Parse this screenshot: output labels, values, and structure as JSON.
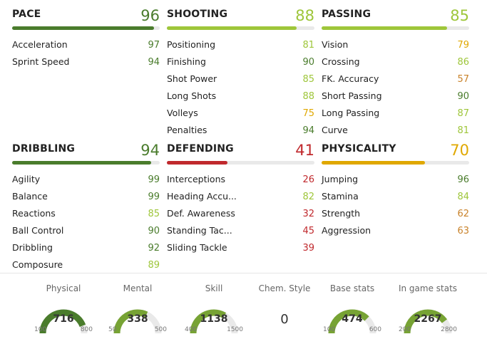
{
  "colors": {
    "dark_green": "#4a7c2c",
    "green": "#77a334",
    "light_green": "#9ec63a",
    "yellow": "#e0a800",
    "orange": "#c9822a",
    "red": "#c0292d",
    "track": "#e9e9e9"
  },
  "categories": [
    {
      "name": "PACE",
      "value": "96",
      "level": 0.96,
      "color": "dark_green",
      "stats": [
        {
          "label": "Acceleration",
          "value": "97",
          "color": "dark_green"
        },
        {
          "label": "Sprint Speed",
          "value": "94",
          "color": "dark_green"
        }
      ]
    },
    {
      "name": "SHOOTING",
      "value": "88",
      "level": 0.88,
      "color": "light_green",
      "stats": [
        {
          "label": "Positioning",
          "value": "81",
          "color": "light_green"
        },
        {
          "label": "Finishing",
          "value": "90",
          "color": "dark_green"
        },
        {
          "label": "Shot Power",
          "value": "85",
          "color": "light_green"
        },
        {
          "label": "Long Shots",
          "value": "88",
          "color": "light_green"
        },
        {
          "label": "Volleys",
          "value": "75",
          "color": "yellow"
        },
        {
          "label": "Penalties",
          "value": "94",
          "color": "dark_green"
        }
      ]
    },
    {
      "name": "PASSING",
      "value": "85",
      "level": 0.85,
      "color": "light_green",
      "stats": [
        {
          "label": "Vision",
          "value": "79",
          "color": "yellow"
        },
        {
          "label": "Crossing",
          "value": "86",
          "color": "light_green"
        },
        {
          "label": "FK. Accuracy",
          "value": "57",
          "color": "orange"
        },
        {
          "label": "Short Passing",
          "value": "90",
          "color": "dark_green"
        },
        {
          "label": "Long Passing",
          "value": "87",
          "color": "light_green"
        },
        {
          "label": "Curve",
          "value": "81",
          "color": "light_green"
        }
      ]
    },
    {
      "name": "DRIBBLING",
      "value": "94",
      "level": 0.94,
      "color": "dark_green",
      "stats": [
        {
          "label": "Agility",
          "value": "99",
          "color": "dark_green"
        },
        {
          "label": "Balance",
          "value": "99",
          "color": "dark_green"
        },
        {
          "label": "Reactions",
          "value": "85",
          "color": "light_green"
        },
        {
          "label": "Ball Control",
          "value": "90",
          "color": "dark_green"
        },
        {
          "label": "Dribbling",
          "value": "92",
          "color": "dark_green"
        },
        {
          "label": "Composure",
          "value": "89",
          "color": "light_green"
        }
      ]
    },
    {
      "name": "DEFENDING",
      "value": "41",
      "level": 0.41,
      "color": "red",
      "stats": [
        {
          "label": "Interceptions",
          "value": "26",
          "color": "red"
        },
        {
          "label": "Heading Accu...",
          "value": "82",
          "color": "light_green"
        },
        {
          "label": "Def. Awareness",
          "value": "32",
          "color": "red"
        },
        {
          "label": "Standing Tac...",
          "value": "45",
          "color": "red"
        },
        {
          "label": "Sliding Tackle",
          "value": "39",
          "color": "red"
        }
      ]
    },
    {
      "name": "PHYSICALITY",
      "value": "70",
      "level": 0.7,
      "color": "yellow",
      "stats": [
        {
          "label": "Jumping",
          "value": "96",
          "color": "dark_green"
        },
        {
          "label": "Stamina",
          "value": "84",
          "color": "light_green"
        },
        {
          "label": "Strength",
          "value": "62",
          "color": "orange"
        },
        {
          "label": "Aggression",
          "value": "63",
          "color": "orange"
        }
      ]
    }
  ],
  "summary": [
    {
      "title": "Physical",
      "value": "716",
      "min": "100",
      "max": "800",
      "fraction": 0.88,
      "color": "dark_green"
    },
    {
      "title": "Mental",
      "value": "338",
      "min": "50",
      "max": "500",
      "fraction": 0.64,
      "color": "green"
    },
    {
      "title": "Skill",
      "value": "1138",
      "min": "400",
      "max": "1500",
      "fraction": 0.67,
      "color": "green"
    },
    {
      "title": "Chem. Style",
      "value": "0"
    },
    {
      "title": "Base stats",
      "value": "474",
      "min": "100",
      "max": "600",
      "fraction": 0.75,
      "color": "green"
    },
    {
      "title": "In game stats",
      "value": "2267",
      "min": "200",
      "max": "2800",
      "fraction": 0.8,
      "color": "green"
    }
  ]
}
